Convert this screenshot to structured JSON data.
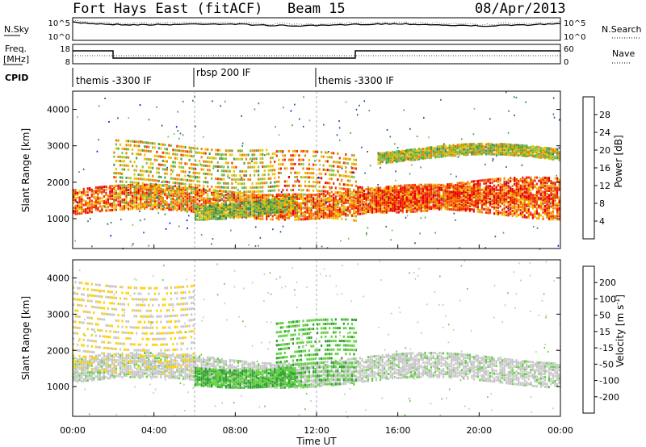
{
  "header": {
    "station": "Fort Hays East (fitACF)",
    "beam": "Beam 15",
    "date": "08/Apr/2013"
  },
  "top_panel": {
    "left_label": "N.Sky",
    "right_label": "N.Search",
    "left_ticks": [
      "10^5",
      "10^0"
    ],
    "right_ticks": [
      "10^5",
      "10^0"
    ]
  },
  "freq_panel": {
    "left_label_1": "Freq.",
    "left_label_2": "[MHz]",
    "right_label": "Nave",
    "left_ticks": [
      "18",
      "8"
    ],
    "right_ticks": [
      "60",
      "0"
    ]
  },
  "cpid": {
    "label": "CPID",
    "programs": [
      "themis -3300 IF",
      "rbsp 200 IF",
      "themis -3300 IF"
    ]
  },
  "x_axis": {
    "label": "Time UT",
    "ticks": [
      "00:00",
      "04:00",
      "08:00",
      "12:00",
      "16:00",
      "20:00",
      "00:00"
    ]
  },
  "power_panel": {
    "ylabel": "Slant Range [km]",
    "yticks": [
      "4000",
      "3000",
      "2000",
      "1000"
    ],
    "cbar_label": "Power [dB]",
    "cbar_ticks": [
      "28",
      "24",
      "20",
      "16",
      "12",
      "8",
      "4"
    ]
  },
  "velocity_panel": {
    "ylabel": "Slant Range [km]",
    "yticks": [
      "4000",
      "3000",
      "2000",
      "1000"
    ],
    "cbar_label": "Velocity [m s",
    "cbar_sup": "-1",
    "cbar_label_end": "]",
    "cbar_ticks": [
      "200",
      "100",
      "50",
      "15",
      "-15",
      "-50",
      "-100",
      "-200"
    ]
  },
  "colors": {
    "power_scale": [
      "#0000ff",
      "#1e4f9a",
      "#2c7a5a",
      "#48a050",
      "#88c040",
      "#f0c000",
      "#f08000",
      "#f03000",
      "#e80000"
    ],
    "velocity_scale": [
      "#ff0000",
      "#ff6000",
      "#ffa000",
      "#ffd000",
      "#c8c8c8",
      "#c8c8c8",
      "#60d040",
      "#30a030",
      "#1e8060",
      "#2050a0",
      "#0000c0"
    ]
  },
  "chart_data": [
    {
      "type": "heatmap",
      "title": "Power [dB]",
      "xlabel": "Time UT",
      "ylabel": "Slant Range [km]",
      "xlim_hours": [
        0,
        24
      ],
      "ylim": [
        180,
        4500
      ],
      "value_range": [
        0,
        30
      ],
      "bands": [
        {
          "hours": [
            0,
            24
          ],
          "range_km": [
            1100,
            1800
          ],
          "center_power": 24
        },
        {
          "hours": [
            2,
            10
          ],
          "range_km": [
            1300,
            3100
          ],
          "center_power": 18
        },
        {
          "hours": [
            6,
            11
          ],
          "range_km": [
            1100,
            1500
          ],
          "center_power": 14
        },
        {
          "hours": [
            10,
            14
          ],
          "range_km": [
            900,
            2800
          ],
          "center_power": 22
        },
        {
          "hours": [
            14,
            24
          ],
          "range_km": [
            1300,
            2000
          ],
          "center_power": 26
        },
        {
          "hours": [
            15,
            24
          ],
          "range_km": [
            2600,
            2900
          ],
          "center_power": 16
        }
      ]
    },
    {
      "type": "heatmap",
      "title": "Velocity [m s-1]",
      "xlabel": "Time UT",
      "ylabel": "Slant Range [km]",
      "xlim_hours": [
        0,
        24
      ],
      "ylim": [
        180,
        4500
      ],
      "value_range": [
        -200,
        200
      ],
      "bands": [
        {
          "hours": [
            0,
            24
          ],
          "range_km": [
            1100,
            1800
          ],
          "center_velocity": 0
        },
        {
          "hours": [
            6,
            11
          ],
          "range_km": [
            1100,
            1600
          ],
          "center_velocity": 60
        },
        {
          "hours": [
            10,
            14
          ],
          "range_km": [
            900,
            2800
          ],
          "center_velocity": 50
        },
        {
          "hours": [
            0,
            6
          ],
          "range_km": [
            1500,
            4000
          ],
          "center_velocity": -60
        }
      ]
    }
  ]
}
